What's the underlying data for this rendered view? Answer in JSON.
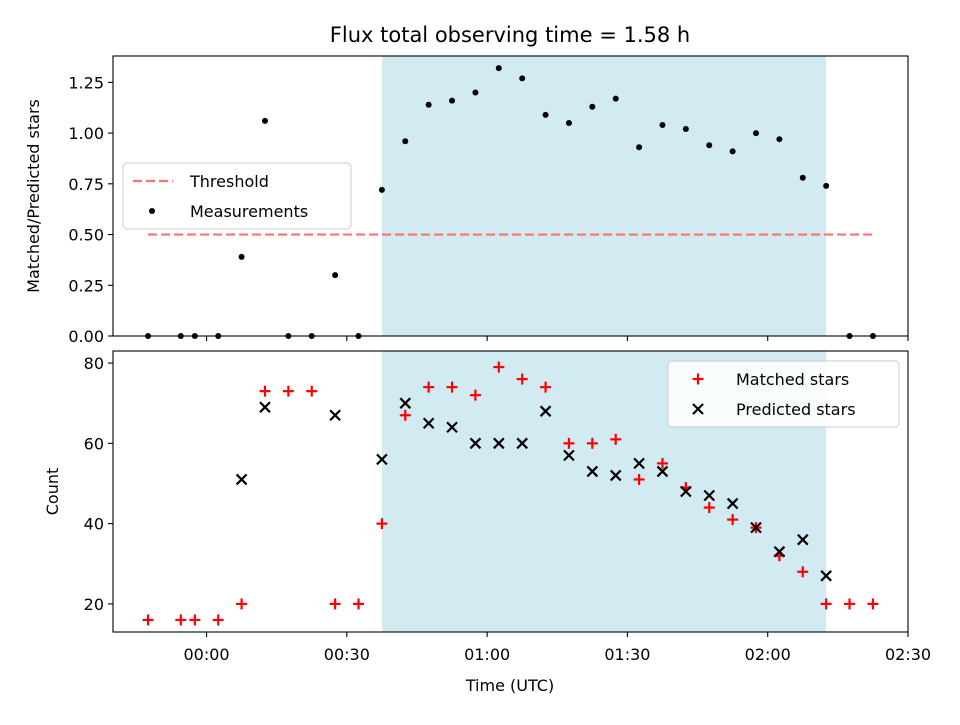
{
  "chart_data": {
    "type": "scatter",
    "title": "Flux total observing time = 1.58 h",
    "xlabel": "Time (UTC)",
    "x_ticks": [
      "00:00",
      "00:30",
      "01:00",
      "01:30",
      "02:00",
      "02:30"
    ],
    "x_range_minutes": [
      -20,
      150
    ],
    "highlight_span_minutes": [
      37.5,
      132.5
    ],
    "colors": {
      "span": "#add8e6",
      "threshold": "#ff7070",
      "measurements": "#000000",
      "matched": "#ff0000",
      "predicted": "#000000"
    },
    "panels": [
      {
        "ylabel": "Matched/Predicted stars",
        "ylim": [
          0,
          1.38
        ],
        "y_ticks": [
          "0.00",
          "0.25",
          "0.50",
          "0.75",
          "1.00",
          "1.25"
        ],
        "legend_position": "center-left",
        "series": [
          {
            "name": "Threshold",
            "style": "dashed-line",
            "x": [
              -12.5,
              142.5
            ],
            "y": [
              0.5,
              0.5
            ]
          },
          {
            "name": "Measurements",
            "style": "dot",
            "x": [
              -12.5,
              -5.5,
              -2.5,
              2.5,
              7.5,
              12.5,
              17.5,
              22.5,
              27.5,
              32.5,
              37.5,
              42.5,
              47.5,
              52.5,
              57.5,
              62.5,
              67.5,
              72.5,
              77.5,
              82.5,
              87.5,
              92.5,
              97.5,
              102.5,
              107.5,
              112.5,
              117.5,
              122.5,
              127.5,
              132.5,
              137.5,
              142.5
            ],
            "y": [
              0,
              0,
              0,
              0,
              0.39,
              1.06,
              0,
              0,
              0.3,
              0,
              0.72,
              0.96,
              1.14,
              1.16,
              1.2,
              1.32,
              1.27,
              1.09,
              1.05,
              1.13,
              1.17,
              0.93,
              1.04,
              1.02,
              0.94,
              0.91,
              1.0,
              0.97,
              0.78,
              0.74,
              0,
              0
            ]
          }
        ]
      },
      {
        "ylabel": "Count",
        "ylim": [
          13,
          83
        ],
        "y_ticks": [
          "20",
          "40",
          "60",
          "80"
        ],
        "legend_position": "top-right",
        "series": [
          {
            "name": "Matched stars",
            "style": "plus",
            "x": [
              -12.5,
              -5.5,
              -2.5,
              2.5,
              7.5,
              12.5,
              17.5,
              22.5,
              27.5,
              32.5,
              37.5,
              42.5,
              47.5,
              52.5,
              57.5,
              62.5,
              67.5,
              72.5,
              77.5,
              82.5,
              87.5,
              92.5,
              97.5,
              102.5,
              107.5,
              112.5,
              117.5,
              122.5,
              127.5,
              132.5,
              137.5,
              142.5
            ],
            "y": [
              16,
              16,
              16,
              16,
              20,
              73,
              73,
              73,
              20,
              20,
              40,
              67,
              74,
              74,
              72,
              79,
              76,
              74,
              60,
              60,
              61,
              51,
              55,
              49,
              44,
              41,
              39,
              32,
              28,
              20,
              20,
              20
            ]
          },
          {
            "name": "Predicted stars",
            "style": "x",
            "x": [
              7.5,
              12.5,
              27.5,
              37.5,
              42.5,
              47.5,
              52.5,
              57.5,
              62.5,
              67.5,
              72.5,
              77.5,
              82.5,
              87.5,
              92.5,
              97.5,
              102.5,
              107.5,
              112.5,
              117.5,
              122.5,
              127.5,
              132.5
            ],
            "y": [
              51,
              69,
              67,
              56,
              70,
              65,
              64,
              60,
              60,
              60,
              68,
              57,
              53,
              52,
              55,
              53,
              48,
              47,
              45,
              39,
              33,
              36,
              27
            ]
          }
        ]
      }
    ]
  }
}
